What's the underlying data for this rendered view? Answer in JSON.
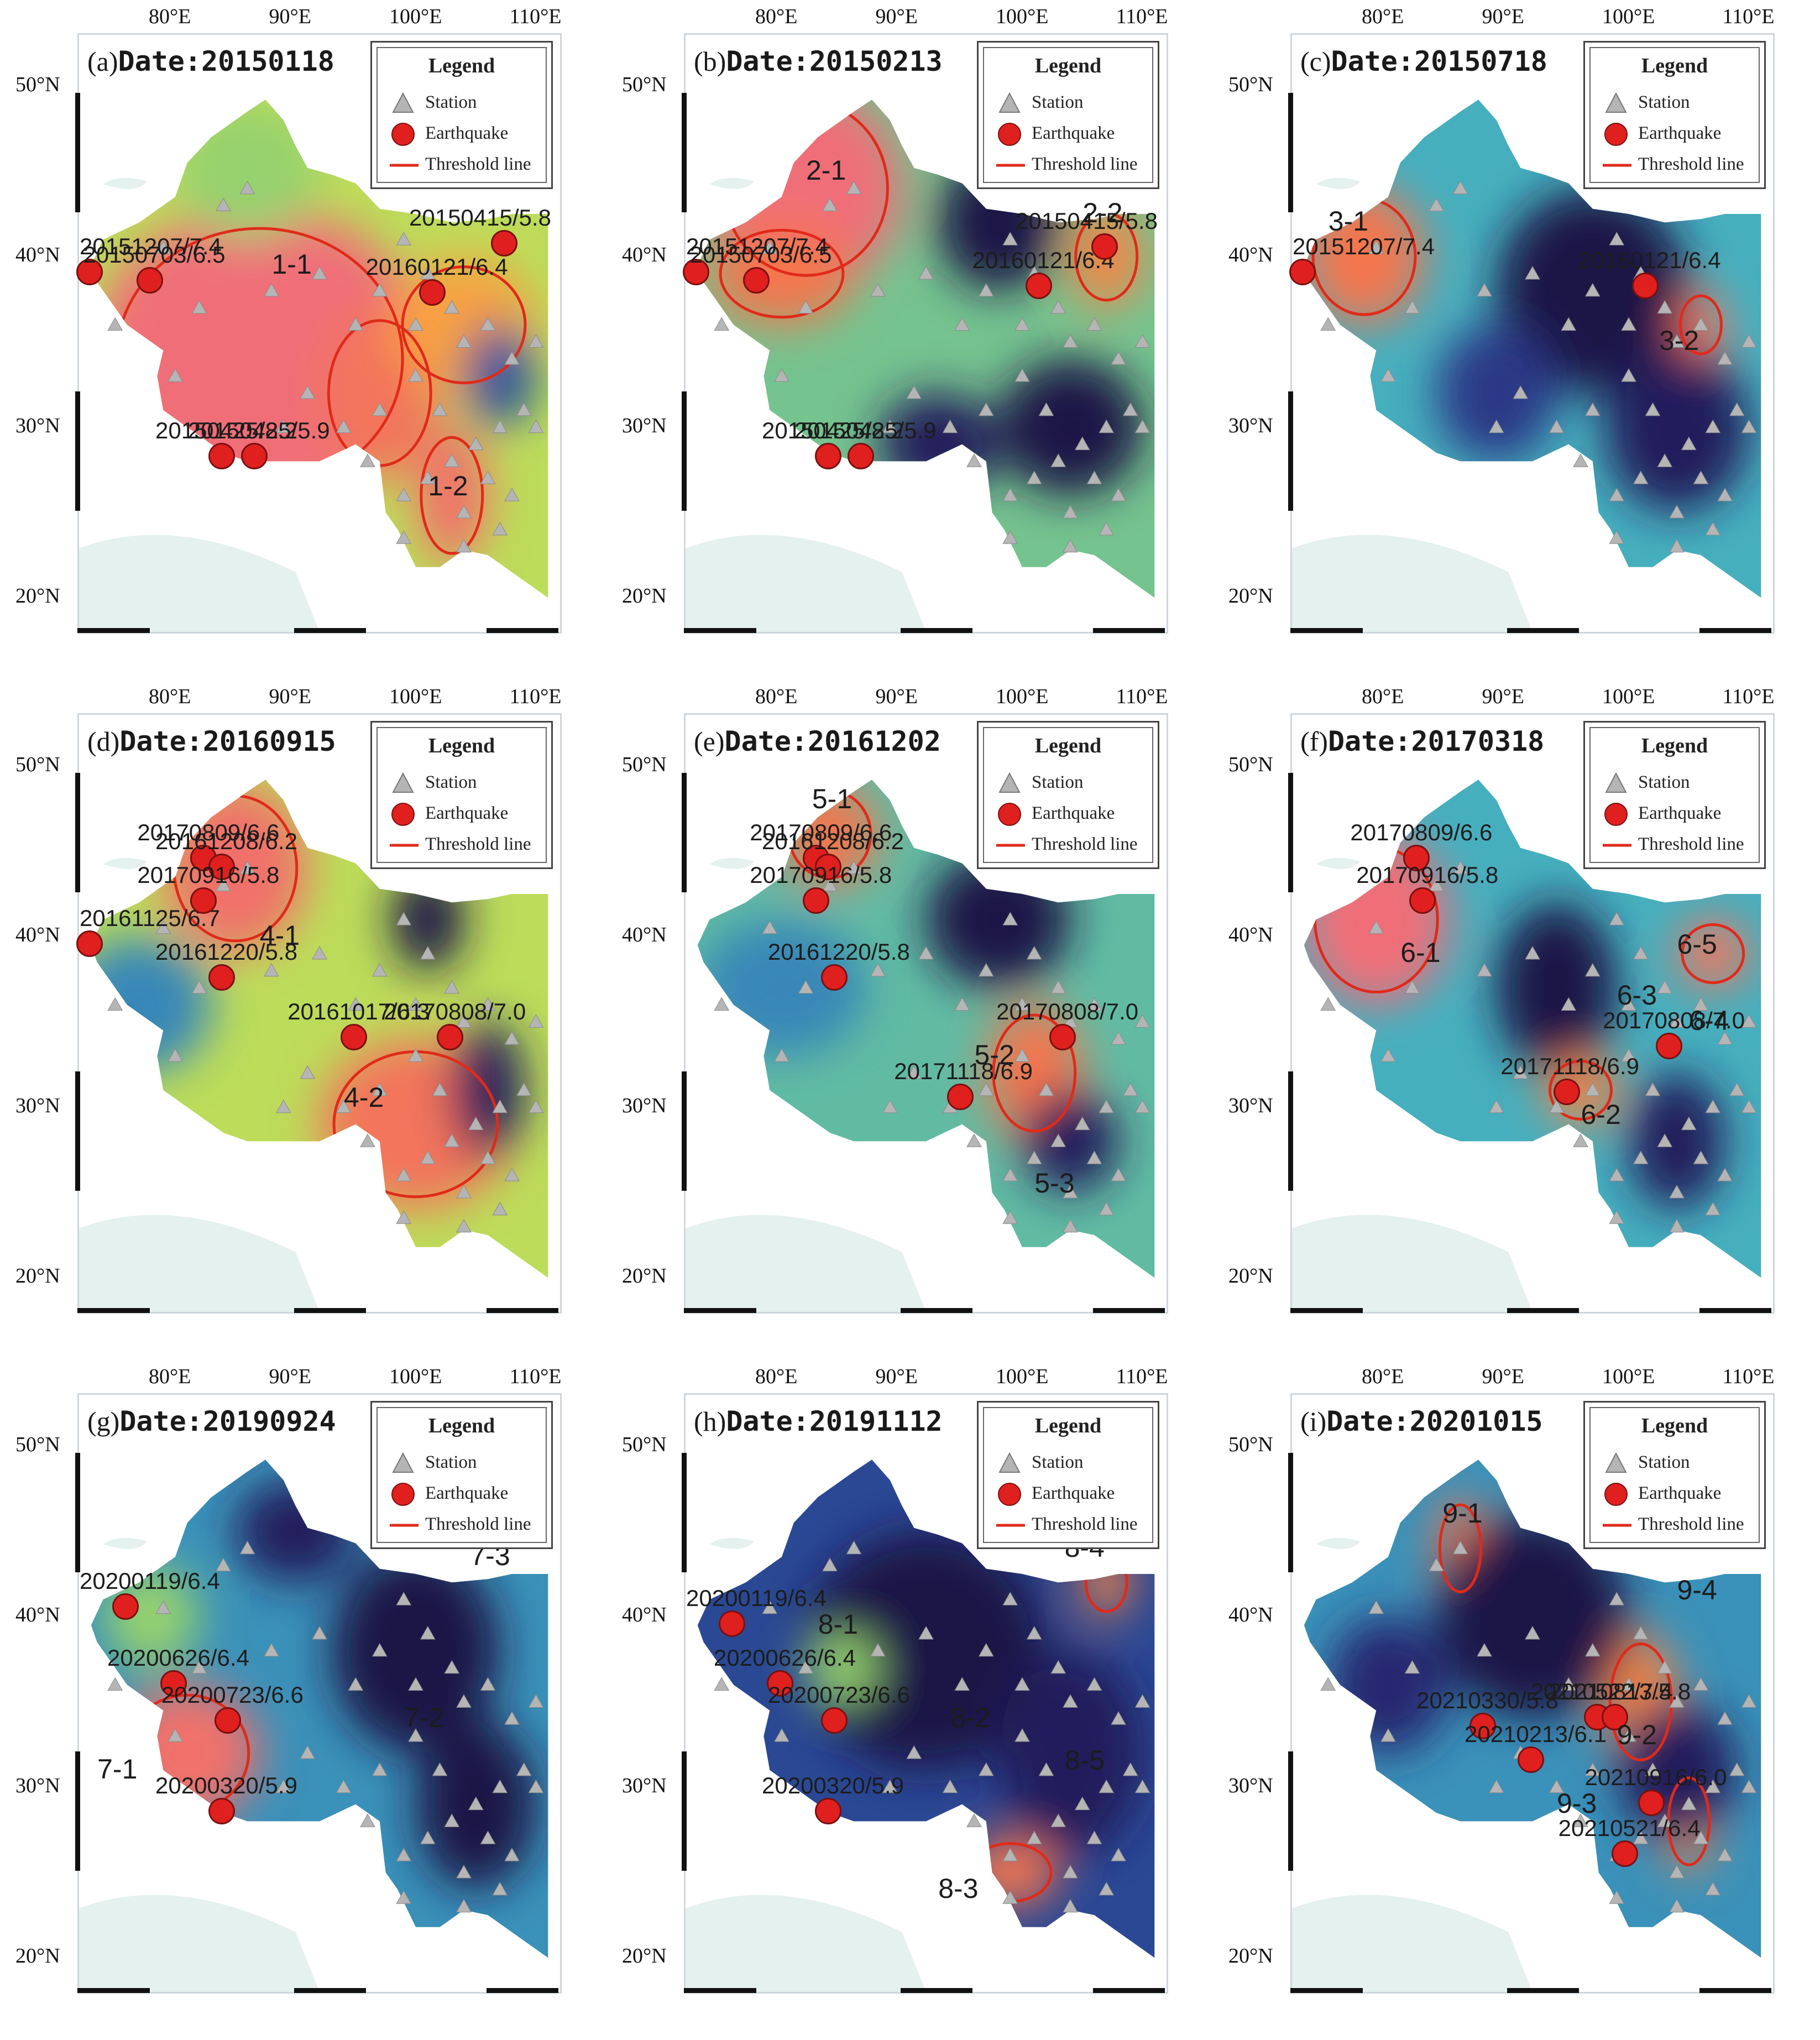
{
  "axes": {
    "lon_labels": [
      "80°E",
      "90°E",
      "100°E",
      "110°E"
    ],
    "lat_labels": [
      "50°N",
      "40°N",
      "30°N",
      "20°N"
    ]
  },
  "legend": {
    "title": "Legend",
    "station": "Station",
    "earthquake": "Earthquake",
    "threshold": "Threshold line"
  },
  "colors": {
    "earthquake": "#e0201f",
    "threshold": "#e02a1a",
    "station": "#b5b5b5"
  },
  "panels": [
    {
      "letter": "(a)",
      "date": "Date:20150118",
      "blobs": [
        {
          "lon": 87,
          "lat": 34,
          "rx": 14,
          "ry": 9,
          "v": 1.0
        },
        {
          "lon": 97,
          "lat": 32,
          "rx": 5,
          "ry": 5,
          "v": 0.9
        },
        {
          "lon": 104,
          "lat": 36,
          "rx": 6,
          "ry": 4,
          "v": 0.75
        },
        {
          "lon": 103,
          "lat": 26,
          "rx": 3,
          "ry": 4,
          "v": 0.95
        },
        {
          "lon": 86,
          "lat": 45,
          "rx": 6,
          "ry": 4,
          "v": 0.5
        },
        {
          "lon": 107,
          "lat": 33,
          "rx": 3,
          "ry": 3,
          "v": 0.2
        }
      ],
      "base": 0.55,
      "quakes": [
        {
          "lon": 73,
          "lat": 39,
          "label": "20151207/7.4"
        },
        {
          "lon": 78,
          "lat": 38.5,
          "label": "20150703/6.5"
        },
        {
          "lon": 84,
          "lat": 28.2,
          "label": "20150425/8.2"
        },
        {
          "lon": 86.7,
          "lat": 28.2,
          "label": "20150425/5.9"
        },
        {
          "lon": 101.5,
          "lat": 37.8,
          "label": "20160121/6.4"
        },
        {
          "lon": 107.5,
          "lat": 40.7,
          "label": "20150415/5.8"
        }
      ],
      "regions": [
        {
          "lon": 90,
          "lat": 39.5,
          "label": "1-1"
        },
        {
          "lon": 103,
          "lat": 26.5,
          "label": "1-2"
        }
      ]
    },
    {
      "letter": "(b)",
      "date": "Date:20150213",
      "blobs": [
        {
          "lon": 82,
          "lat": 44,
          "rx": 8,
          "ry": 6,
          "v": 1.0
        },
        {
          "lon": 80,
          "lat": 39,
          "rx": 6,
          "ry": 3,
          "v": 0.85
        },
        {
          "lon": 98,
          "lat": 42,
          "rx": 5,
          "ry": 4,
          "v": 0.0
        },
        {
          "lon": 104,
          "lat": 30,
          "rx": 6,
          "ry": 4,
          "v": 0.0
        },
        {
          "lon": 93,
          "lat": 29,
          "rx": 5,
          "ry": 3,
          "v": 0.05
        },
        {
          "lon": 107,
          "lat": 40,
          "rx": 3,
          "ry": 3,
          "v": 0.8
        }
      ],
      "base": 0.45,
      "quakes": [
        {
          "lon": 73,
          "lat": 39,
          "label": "20151207/7.4"
        },
        {
          "lon": 78,
          "lat": 38.5,
          "label": "20150703/6.5"
        },
        {
          "lon": 84,
          "lat": 28.2,
          "label": "20150425/8.2"
        },
        {
          "lon": 86.7,
          "lat": 28.2,
          "label": "20150425/5.9"
        },
        {
          "lon": 101.5,
          "lat": 38.2,
          "label": "20160121/6.4"
        },
        {
          "lon": 107,
          "lat": 40.5,
          "label": "20150415/5.8"
        }
      ],
      "regions": [
        {
          "lon": 84,
          "lat": 45,
          "label": "2-1"
        },
        {
          "lon": 107,
          "lat": 42.5,
          "label": "2-2"
        }
      ]
    },
    {
      "letter": "(c)",
      "date": "Date:20150718",
      "blobs": [
        {
          "lon": 78,
          "lat": 40,
          "rx": 5,
          "ry": 4,
          "v": 0.85
        },
        {
          "lon": 97,
          "lat": 38,
          "rx": 8,
          "ry": 6,
          "v": 0.0
        },
        {
          "lon": 104,
          "lat": 30,
          "rx": 6,
          "ry": 5,
          "v": 0.05
        },
        {
          "lon": 89,
          "lat": 32,
          "rx": 5,
          "ry": 4,
          "v": 0.15
        },
        {
          "lon": 106,
          "lat": 36,
          "rx": 2,
          "ry": 2,
          "v": 0.9
        }
      ],
      "base": 0.38,
      "quakes": [
        {
          "lon": 73,
          "lat": 39,
          "label": "20151207/7.4"
        },
        {
          "lon": 101.5,
          "lat": 38.2,
          "label": "20160121/6.4"
        }
      ],
      "regions": [
        {
          "lon": 77,
          "lat": 42,
          "label": "3-1"
        },
        {
          "lon": 104.5,
          "lat": 35,
          "label": "3-2"
        }
      ]
    },
    {
      "letter": "(d)",
      "date": "Date:20160915",
      "blobs": [
        {
          "lon": 85,
          "lat": 44,
          "rx": 6,
          "ry": 5,
          "v": 0.95
        },
        {
          "lon": 100,
          "lat": 29,
          "rx": 8,
          "ry": 5,
          "v": 0.9
        },
        {
          "lon": 101,
          "lat": 41,
          "rx": 3,
          "ry": 3,
          "v": 0.0
        },
        {
          "lon": 106,
          "lat": 31,
          "rx": 3,
          "ry": 4,
          "v": 0.05
        },
        {
          "lon": 77,
          "lat": 36,
          "rx": 6,
          "ry": 4,
          "v": 0.3
        }
      ],
      "base": 0.55,
      "quakes": [
        {
          "lon": 73,
          "lat": 39.5,
          "label": "20161125/6.7"
        },
        {
          "lon": 82.5,
          "lat": 44.5,
          "label": "20170809/6.6"
        },
        {
          "lon": 84,
          "lat": 44,
          "label": "20161208/6.2"
        },
        {
          "lon": 82.5,
          "lat": 42,
          "label": "20170916/5.8"
        },
        {
          "lon": 84,
          "lat": 37.5,
          "label": "20161220/5.8"
        },
        {
          "lon": 95,
          "lat": 34,
          "label": "20161017/6.3"
        },
        {
          "lon": 103,
          "lat": 34,
          "label": "20170808/7.0"
        }
      ],
      "regions": [
        {
          "lon": 89,
          "lat": 40,
          "label": "4-1"
        },
        {
          "lon": 96,
          "lat": 30.5,
          "label": "4-2"
        }
      ]
    },
    {
      "letter": "(e)",
      "date": "Date:20161202",
      "blobs": [
        {
          "lon": 84,
          "lat": 46,
          "rx": 4,
          "ry": 3,
          "v": 0.85
        },
        {
          "lon": 101,
          "lat": 32,
          "rx": 4,
          "ry": 4,
          "v": 0.85
        },
        {
          "lon": 98,
          "lat": 41,
          "rx": 6,
          "ry": 4,
          "v": 0.0
        },
        {
          "lon": 104,
          "lat": 28,
          "rx": 4,
          "ry": 3,
          "v": 0.05
        },
        {
          "lon": 80,
          "lat": 37,
          "rx": 7,
          "ry": 4,
          "v": 0.3
        }
      ],
      "base": 0.42,
      "quakes": [
        {
          "lon": 83,
          "lat": 44.5,
          "label": "20170809/6.6"
        },
        {
          "lon": 84,
          "lat": 44,
          "label": "20161208/6.2"
        },
        {
          "lon": 83,
          "lat": 42,
          "label": "20170916/5.8"
        },
        {
          "lon": 84.5,
          "lat": 37.5,
          "label": "20161220/5.8"
        },
        {
          "lon": 103.5,
          "lat": 34,
          "label": "20170808/7.0"
        },
        {
          "lon": 95,
          "lat": 30.5,
          "label": "20171118/6.9"
        }
      ],
      "regions": [
        {
          "lon": 84.5,
          "lat": 48,
          "label": "5-1"
        },
        {
          "lon": 98,
          "lat": 33,
          "label": "5-2"
        },
        {
          "lon": 103,
          "lat": 25.5,
          "label": "5-3"
        }
      ]
    },
    {
      "letter": "(f)",
      "date": "Date:20170318",
      "blobs": [
        {
          "lon": 79,
          "lat": 41,
          "rx": 6,
          "ry": 5,
          "v": 1.0
        },
        {
          "lon": 94,
          "lat": 37,
          "rx": 5,
          "ry": 5,
          "v": 0.0
        },
        {
          "lon": 107,
          "lat": 39,
          "rx": 3,
          "ry": 2,
          "v": 0.9
        },
        {
          "lon": 96,
          "lat": 31,
          "rx": 3,
          "ry": 2,
          "v": 0.8
        },
        {
          "lon": 104,
          "lat": 28,
          "rx": 4,
          "ry": 4,
          "v": 0.05
        }
      ],
      "base": 0.38,
      "quakes": [
        {
          "lon": 82.5,
          "lat": 44.5,
          "label": "20170809/6.6"
        },
        {
          "lon": 83,
          "lat": 42,
          "label": "20170916/5.8"
        },
        {
          "lon": 103.5,
          "lat": 33.5,
          "label": "20170808/7.0"
        },
        {
          "lon": 95,
          "lat": 30.8,
          "label": "20171118/6.9"
        }
      ],
      "regions": [
        {
          "lon": 83,
          "lat": 39,
          "label": "6-1"
        },
        {
          "lon": 98,
          "lat": 29.5,
          "label": "6-2"
        },
        {
          "lon": 101,
          "lat": 36.5,
          "label": "6-3"
        },
        {
          "lon": 107,
          "lat": 35,
          "label": "6-4"
        },
        {
          "lon": 106,
          "lat": 39.5,
          "label": "6-5"
        }
      ]
    },
    {
      "letter": "(g)",
      "date": "Date:20190924",
      "blobs": [
        {
          "lon": 81,
          "lat": 32,
          "rx": 6,
          "ry": 4,
          "v": 0.95
        },
        {
          "lon": 78,
          "lat": 40,
          "rx": 4,
          "ry": 3,
          "v": 0.5
        },
        {
          "lon": 100,
          "lat": 38,
          "rx": 7,
          "ry": 6,
          "v": 0.0
        },
        {
          "lon": 105,
          "lat": 29,
          "rx": 5,
          "ry": 5,
          "v": 0.0
        },
        {
          "lon": 90,
          "lat": 45,
          "rx": 5,
          "ry": 3,
          "v": 0.05
        }
      ],
      "base": 0.32,
      "quakes": [
        {
          "lon": 76,
          "lat": 40.5,
          "label": "20200119/6.4"
        },
        {
          "lon": 80,
          "lat": 36,
          "label": "20200626/6.4"
        },
        {
          "lon": 84.5,
          "lat": 33.8,
          "label": "20200723/6.6"
        },
        {
          "lon": 84,
          "lat": 28.5,
          "label": "20200320/5.9"
        }
      ],
      "regions": [
        {
          "lon": 75.5,
          "lat": 31,
          "label": "7-1"
        },
        {
          "lon": 101,
          "lat": 34,
          "label": "7-2"
        },
        {
          "lon": 106.5,
          "lat": 43.5,
          "label": "7-3"
        }
      ]
    },
    {
      "letter": "(h)",
      "date": "Date:20191112",
      "blobs": [
        {
          "lon": 92,
          "lat": 38,
          "rx": 10,
          "ry": 7,
          "v": 0.0
        },
        {
          "lon": 104,
          "lat": 32,
          "rx": 6,
          "ry": 6,
          "v": 0.05
        },
        {
          "lon": 85,
          "lat": 37,
          "rx": 3,
          "ry": 2,
          "v": 0.5
        },
        {
          "lon": 99,
          "lat": 25,
          "rx": 4,
          "ry": 2,
          "v": 0.85
        },
        {
          "lon": 107,
          "lat": 42,
          "rx": 2,
          "ry": 2,
          "v": 0.8
        }
      ],
      "base": 0.18,
      "quakes": [
        {
          "lon": 76,
          "lat": 39.5,
          "label": "20200119/6.4"
        },
        {
          "lon": 80,
          "lat": 36,
          "label": "20200626/6.4"
        },
        {
          "lon": 84.5,
          "lat": 33.8,
          "label": "20200723/6.6"
        },
        {
          "lon": 84,
          "lat": 28.5,
          "label": "20200320/5.9"
        }
      ],
      "regions": [
        {
          "lon": 85,
          "lat": 39.5,
          "label": "8-1"
        },
        {
          "lon": 96,
          "lat": 34,
          "label": "8-2"
        },
        {
          "lon": 95,
          "lat": 24,
          "label": "8-3"
        },
        {
          "lon": 105.5,
          "lat": 44,
          "label": "8-4"
        },
        {
          "lon": 105.5,
          "lat": 31.5,
          "label": "8-5"
        }
      ]
    },
    {
      "letter": "(i)",
      "date": "Date:20201015",
      "blobs": [
        {
          "lon": 86,
          "lat": 44,
          "rx": 2,
          "ry": 3,
          "v": 0.85
        },
        {
          "lon": 101,
          "lat": 35,
          "rx": 3,
          "ry": 4,
          "v": 0.8
        },
        {
          "lon": 105,
          "lat": 28,
          "rx": 2,
          "ry": 3,
          "v": 0.8
        },
        {
          "lon": 92,
          "lat": 40,
          "rx": 8,
          "ry": 6,
          "v": 0.0
        },
        {
          "lon": 104,
          "lat": 31,
          "rx": 5,
          "ry": 4,
          "v": 0.05
        },
        {
          "lon": 80,
          "lat": 36,
          "rx": 5,
          "ry": 4,
          "v": 0.1
        }
      ],
      "base": 0.32,
      "quakes": [
        {
          "lon": 88,
          "lat": 33.5,
          "label": "20210330/5.8"
        },
        {
          "lon": 92,
          "lat": 31.5,
          "label": "20210213/6.1"
        },
        {
          "lon": 97.5,
          "lat": 34,
          "label": "20210522/7.4"
        },
        {
          "lon": 99,
          "lat": 34,
          "label": "20210813/5.8"
        },
        {
          "lon": 102,
          "lat": 29,
          "label": "20210916/6.0"
        },
        {
          "lon": 99.8,
          "lat": 26,
          "label": "20210521/6.4"
        }
      ],
      "regions": [
        {
          "lon": 86.5,
          "lat": 46,
          "label": "9-1"
        },
        {
          "lon": 101,
          "lat": 33,
          "label": "9-2"
        },
        {
          "lon": 96,
          "lat": 29,
          "label": "9-3"
        },
        {
          "lon": 106,
          "lat": 41.5,
          "label": "9-4"
        }
      ]
    }
  ]
}
